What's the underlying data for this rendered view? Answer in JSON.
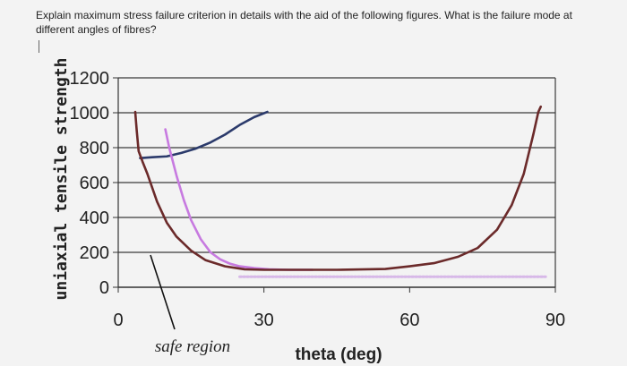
{
  "question": "Explain maximum stress failure criterion in details with the aid of the following figures. What is the failure mode at different angles of fibres?",
  "chart_data": {
    "type": "line",
    "title": "",
    "xlabel": "theta (deg)",
    "ylabel": "uniaxial tensile strength",
    "xlim": [
      0,
      90
    ],
    "ylim": [
      0,
      1200
    ],
    "x_ticks": [
      "0",
      "30",
      "60",
      "90"
    ],
    "y_ticks": [
      "0",
      "200",
      "400",
      "600",
      "800",
      "1000",
      "1200"
    ],
    "grid": "horizontal",
    "annotation": "safe region",
    "series": [
      {
        "color": "#2b3a6b",
        "x": [
          4.5,
          7,
          10,
          13,
          16,
          19,
          22,
          25,
          28,
          30.7
        ],
        "y": [
          740,
          745,
          750,
          770,
          795,
          830,
          875,
          930,
          975,
          1005
        ]
      },
      {
        "color": "#c77ae0",
        "x": [
          9.7,
          10.5,
          12,
          13.5,
          15,
          17,
          19,
          21,
          23,
          25,
          28,
          31,
          35,
          40
        ],
        "y": [
          905,
          800,
          640,
          500,
          385,
          275,
          200,
          160,
          135,
          120,
          110,
          103,
          100,
          100
        ]
      },
      {
        "color": "#6b2a2a",
        "x": [
          3.5,
          3.8,
          4.2,
          5,
          6,
          7,
          8,
          10,
          12,
          15,
          18,
          22,
          26,
          30,
          35,
          45,
          55,
          60,
          65,
          70,
          74,
          78,
          81,
          83.5,
          85.5,
          86.5,
          87
        ],
        "y": [
          1005,
          900,
          780,
          720,
          650,
          570,
          490,
          370,
          290,
          210,
          155,
          120,
          103,
          100,
          100,
          100,
          105,
          120,
          138,
          175,
          225,
          330,
          470,
          650,
          880,
          1005,
          1035
        ]
      },
      {
        "color": "#d7b8e8",
        "x": [
          25,
          40,
          55,
          70,
          80,
          88
        ],
        "y": [
          60,
          60,
          60,
          60,
          60,
          60
        ]
      }
    ]
  }
}
